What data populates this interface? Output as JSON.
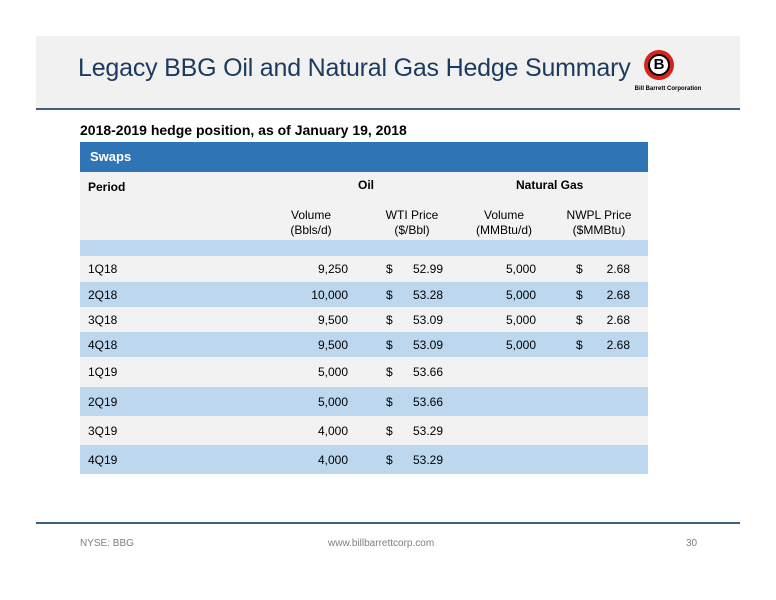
{
  "header": {
    "title": "Legacy BBG Oil and Natural Gas Hedge Summary",
    "logo_letter": "B",
    "logo_text": "Bill Barrett Corporation"
  },
  "subtitle": "2018-2019 hedge position, as of January 19, 2018",
  "table": {
    "section_label": "Swaps",
    "period_header": "Period",
    "oil_header": "Oil",
    "gas_header": "Natural Gas",
    "col_oil_volume": "Volume",
    "col_oil_volume_unit": "(Bbls/d)",
    "col_oil_price": "WTI Price",
    "col_oil_price_unit": "($/Bbl)",
    "col_gas_volume": "Volume",
    "col_gas_volume_unit": "(MMBtu/d)",
    "col_gas_price": "NWPL Price",
    "col_gas_price_unit": "($MMBtu)",
    "rows": [
      {
        "period": "1Q18",
        "oil_volume": "9,250",
        "oil_dollar": "$",
        "oil_price": "52.99",
        "gas_volume": "5,000",
        "gas_dollar": "$",
        "gas_price": "2.68"
      },
      {
        "period": "2Q18",
        "oil_volume": "10,000",
        "oil_dollar": "$",
        "oil_price": "53.28",
        "gas_volume": "5,000",
        "gas_dollar": "$",
        "gas_price": "2.68"
      },
      {
        "period": "3Q18",
        "oil_volume": "9,500",
        "oil_dollar": "$",
        "oil_price": "53.09",
        "gas_volume": "5,000",
        "gas_dollar": "$",
        "gas_price": "2.68"
      },
      {
        "period": "4Q18",
        "oil_volume": "9,500",
        "oil_dollar": "$",
        "oil_price": "53.09",
        "gas_volume": "5,000",
        "gas_dollar": "$",
        "gas_price": "2.68"
      },
      {
        "period": "1Q19",
        "oil_volume": "5,000",
        "oil_dollar": "$",
        "oil_price": "53.66",
        "gas_volume": "",
        "gas_dollar": "",
        "gas_price": ""
      },
      {
        "period": "2Q19",
        "oil_volume": "5,000",
        "oil_dollar": "$",
        "oil_price": "53.66",
        "gas_volume": "",
        "gas_dollar": "",
        "gas_price": ""
      },
      {
        "period": "3Q19",
        "oil_volume": "4,000",
        "oil_dollar": "$",
        "oil_price": "53.29",
        "gas_volume": "",
        "gas_dollar": "",
        "gas_price": ""
      },
      {
        "period": "4Q19",
        "oil_volume": "4,000",
        "oil_dollar": "$",
        "oil_price": "53.29",
        "gas_volume": "",
        "gas_dollar": "",
        "gas_price": ""
      }
    ]
  },
  "footer": {
    "ticker": "NYSE: BBG",
    "url": "www.billbarrettcorp.com",
    "page_number": "30"
  },
  "colors": {
    "title": "#1c3a5f",
    "swaps_bar": "#2f75b5",
    "row_blue": "#bdd7ee",
    "row_light": "#f2f2f2",
    "logo_red": "#d8231c"
  }
}
